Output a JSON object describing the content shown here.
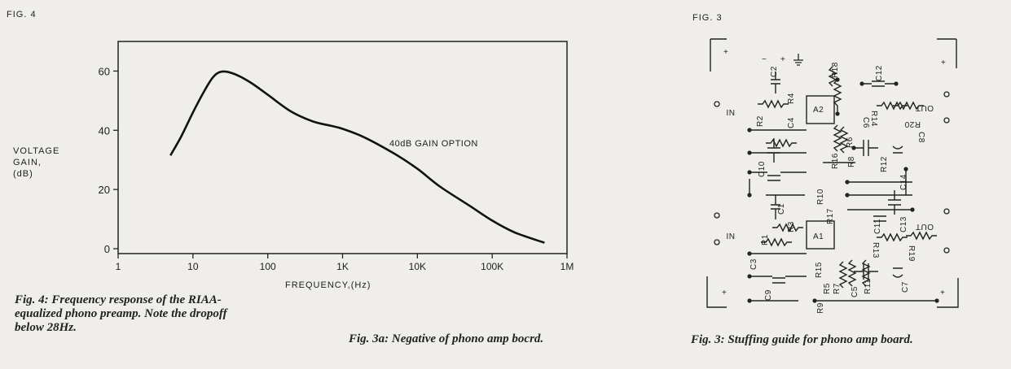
{
  "fig4": {
    "tag": "FIG. 4",
    "caption_lines": [
      "Fig. 4: Frequency response of the RIAA-",
      "equalized phono preamp. Note the dropoff",
      "below 28Hz."
    ]
  },
  "fig3": {
    "tag": "FIG. 3"
  },
  "middle_caption": "Fig. 3a: Negative of phono amp bocrd.",
  "right_caption": "Fig. 3: Stuffing guide for phono amp board.",
  "chart_data": {
    "type": "line",
    "title": "",
    "xlabel": "FREQUENCY,(Hz)",
    "ylabel_lines": [
      "VOLTAGE",
      "GAIN,",
      "(dB)"
    ],
    "xscale": "log",
    "xlim": [
      1,
      1000000
    ],
    "ylim": [
      0,
      70
    ],
    "x_tick_labels": [
      "1",
      "10",
      "100",
      "1K",
      "10K",
      "100K",
      "1M"
    ],
    "y_ticks": [
      0,
      20,
      40,
      60
    ],
    "annotation": "40dB GAIN OPTION",
    "grid": false,
    "series": [
      {
        "x": [
          5,
          7,
          10,
          14,
          18,
          22,
          28,
          40,
          60,
          100,
          200,
          400,
          700,
          1000,
          2000,
          5000,
          10000,
          20000,
          50000,
          100000,
          200000,
          500000
        ],
        "values": [
          31.5,
          38,
          46,
          53,
          57.5,
          59.5,
          59.8,
          58.5,
          56,
          52,
          46.5,
          43,
          41.5,
          40.5,
          37.5,
          32,
          27,
          21,
          14.5,
          9.5,
          5.5,
          2
        ]
      }
    ]
  },
  "board": {
    "labels": {
      "r18": "R18",
      "c2": "C2",
      "r4": "R4",
      "c12": "C12",
      "r2": "R2",
      "a2": "A2",
      "c4": "C4",
      "in_top": "NI",
      "out_top": "OUT",
      "c10": "C10",
      "r16": "R16",
      "r6": "R6",
      "r8": "R8",
      "r14": "R14",
      "c6": "C6",
      "r20": "R20",
      "c8": "C8",
      "r10": "R10",
      "r12": "R12",
      "c14": "C14",
      "c1": "C1",
      "r3": "R3",
      "r17": "R17",
      "c11": "C11",
      "c13": "C13",
      "a1": "A1",
      "r1": "R1",
      "in_bot": "NI",
      "out_bot": "OUT",
      "r13": "R13",
      "r19": "R19",
      "c3": "C3",
      "r15": "R15",
      "r5": "R5",
      "r7": "R7",
      "c5": "C5",
      "r11": "R11",
      "c7": "C7",
      "c9": "C9",
      "r9": "R9",
      "minus": "−",
      "plus": "+"
    }
  }
}
